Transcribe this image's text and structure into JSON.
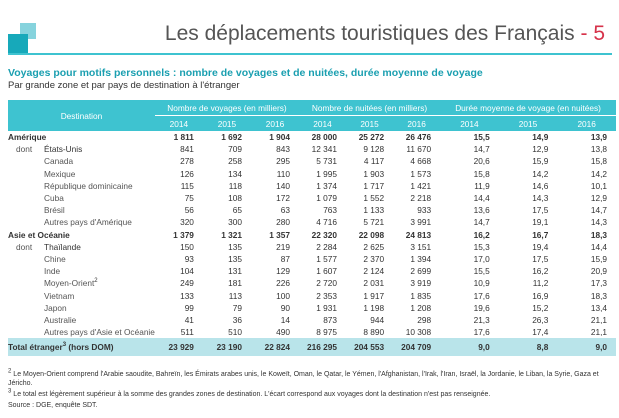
{
  "header": {
    "title": "Les déplacements touristiques des Français",
    "page": "5"
  },
  "subtitle": "Voyages pour motifs personnels : nombre de voyages et de nuitées, durée moyenne de voyage",
  "subtitle2": "Par grande zone et par pays de destination à l'étranger",
  "table": {
    "dest_header": "Destination",
    "groups": [
      "Nombre de voyages (en milliers)",
      "Nombre de nuitées (en milliers)",
      "Durée moyenne de voyage (en nuitées)"
    ],
    "years": [
      "2014",
      "2015",
      "2016",
      "2014",
      "2015",
      "2016",
      "2014",
      "2015",
      "2016"
    ],
    "dont_label": "dont",
    "rows": [
      {
        "type": "zone",
        "name": "Amérique",
        "values": [
          "1 811",
          "1 692",
          "1 904",
          "28 000",
          "25 272",
          "26 476",
          "15,5",
          "14,9",
          "13,9"
        ]
      },
      {
        "type": "country",
        "dont": true,
        "name": "États-Unis",
        "values": [
          "841",
          "709",
          "843",
          "12 341",
          "9 128",
          "11 670",
          "14,7",
          "12,9",
          "13,8"
        ]
      },
      {
        "type": "country",
        "name": "Canada",
        "values": [
          "278",
          "258",
          "295",
          "5 731",
          "4 117",
          "4 668",
          "20,6",
          "15,9",
          "15,8"
        ]
      },
      {
        "type": "country",
        "name": "Mexique",
        "values": [
          "126",
          "134",
          "110",
          "1 995",
          "1 903",
          "1 573",
          "15,8",
          "14,2",
          "14,2"
        ]
      },
      {
        "type": "country",
        "name": "République dominicaine",
        "values": [
          "115",
          "118",
          "140",
          "1 374",
          "1 717",
          "1 421",
          "11,9",
          "14,6",
          "10,1"
        ]
      },
      {
        "type": "country",
        "name": "Cuba",
        "values": [
          "75",
          "108",
          "172",
          "1 079",
          "1 552",
          "2 218",
          "14,4",
          "14,3",
          "12,9"
        ]
      },
      {
        "type": "country",
        "name": "Brésil",
        "values": [
          "56",
          "65",
          "63",
          "763",
          "1 133",
          "933",
          "13,6",
          "17,5",
          "14,7"
        ]
      },
      {
        "type": "country",
        "name": "Autres pays d'Amérique",
        "values": [
          "320",
          "300",
          "280",
          "4 716",
          "5 721",
          "3 991",
          "14,7",
          "19,1",
          "14,3"
        ]
      },
      {
        "type": "zone",
        "name": "Asie et Océanie",
        "values": [
          "1 379",
          "1 321",
          "1 357",
          "22 320",
          "22 098",
          "24 813",
          "16,2",
          "16,7",
          "18,3"
        ]
      },
      {
        "type": "country",
        "dont": true,
        "name": "Thaïlande",
        "values": [
          "150",
          "135",
          "219",
          "2 284",
          "2 625",
          "3 151",
          "15,3",
          "19,4",
          "14,4"
        ]
      },
      {
        "type": "country",
        "name": "Chine",
        "values": [
          "93",
          "135",
          "87",
          "1 577",
          "2 370",
          "1 394",
          "17,0",
          "17,5",
          "15,9"
        ]
      },
      {
        "type": "country",
        "name": "Inde",
        "values": [
          "104",
          "131",
          "129",
          "1 607",
          "2 124",
          "2 699",
          "15,5",
          "16,2",
          "20,9"
        ]
      },
      {
        "type": "country",
        "name": "Moyen-Orient",
        "sup": "2",
        "values": [
          "249",
          "181",
          "226",
          "2 720",
          "2 031",
          "3 919",
          "10,9",
          "11,2",
          "17,3"
        ]
      },
      {
        "type": "country",
        "name": "Vietnam",
        "values": [
          "133",
          "113",
          "100",
          "2 353",
          "1 917",
          "1 835",
          "17,6",
          "16,9",
          "18,3"
        ]
      },
      {
        "type": "country",
        "name": "Japon",
        "values": [
          "99",
          "79",
          "90",
          "1 931",
          "1 198",
          "1 208",
          "19,6",
          "15,2",
          "13,4"
        ]
      },
      {
        "type": "country",
        "name": "Australie",
        "values": [
          "41",
          "36",
          "14",
          "873",
          "944",
          "298",
          "21,3",
          "26,3",
          "21,1"
        ]
      },
      {
        "type": "country",
        "name": "Autres pays d'Asie et Océanie",
        "values": [
          "511",
          "510",
          "490",
          "8 975",
          "8 890",
          "10 308",
          "17,6",
          "17,4",
          "21,1"
        ]
      }
    ],
    "total": {
      "name": "Total étranger",
      "sup": "3",
      "suffix": " (hors DOM)",
      "values": [
        "23 929",
        "23 190",
        "22 824",
        "216 295",
        "204 553",
        "204 709",
        "9,0",
        "8,8",
        "9,0"
      ]
    }
  },
  "footnotes": {
    "n2": "Le Moyen-Orient comprend l'Arabie saoudite, Bahreïn, les Émirats arabes unis, le Koweït, Oman, le Qatar, le Yémen, l'Afghanistan, l'Irak, l'Iran, Israël, la Jordanie, le Liban, la Syrie, Gaza et Jéricho.",
    "n3": "Le total est légèrement supérieur à la somme des grandes zones de destination. L'écart correspond aux voyages dont la destination n'est pas renseignée.",
    "source": "Source : DGE, enquête SDT.",
    "n2_mark": "2",
    "n3_mark": "3"
  },
  "colors": {
    "accent": "#3ec3d0",
    "title_accent": "#d6324a",
    "total_bg": "#b9e4ea"
  }
}
